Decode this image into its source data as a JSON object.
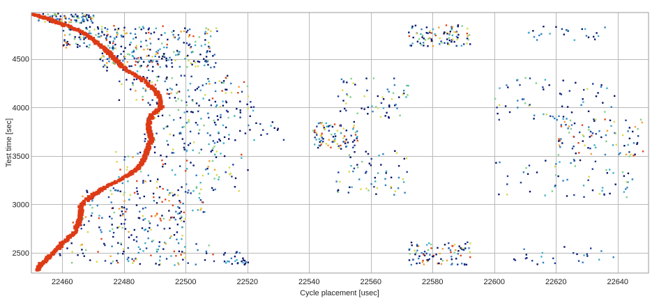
{
  "chart_data": {
    "type": "scatter",
    "xlabel": "Cycle placement [usec]",
    "ylabel": "Test time [sec]",
    "xlim": [
      22450,
      22650
    ],
    "ylim": [
      2290,
      4980
    ],
    "xticks": [
      22460,
      22480,
      22500,
      22520,
      22540,
      22560,
      22580,
      22600,
      22620,
      22640
    ],
    "yticks": [
      2500,
      3000,
      3500,
      4000,
      4500
    ],
    "grid": true,
    "legend": "none",
    "colormap": [
      "#08156b",
      "#1f3f9a",
      "#2f7fc0",
      "#3cb0c8",
      "#7fcf8a",
      "#d8d84a",
      "#f0a030",
      "#e0451a"
    ],
    "trace_color": "#dd3b16",
    "series": [
      {
        "shape": "s-curve trace",
        "points": [
          [
            22451,
            4960
          ],
          [
            22455,
            4920
          ],
          [
            22460,
            4860
          ],
          [
            22466,
            4790
          ],
          [
            22470,
            4700
          ],
          [
            22473,
            4620
          ],
          [
            22476,
            4540
          ],
          [
            22478,
            4470
          ],
          [
            22481,
            4380
          ],
          [
            22486,
            4290
          ],
          [
            22490,
            4180
          ],
          [
            22492,
            4080
          ],
          [
            22492,
            4000
          ],
          [
            22489,
            3920
          ],
          [
            22488,
            3840
          ],
          [
            22488,
            3760
          ],
          [
            22489,
            3680
          ],
          [
            22488,
            3600
          ],
          [
            22487,
            3520
          ],
          [
            22486,
            3440
          ],
          [
            22484,
            3360
          ],
          [
            22480,
            3280
          ],
          [
            22474,
            3180
          ],
          [
            22469,
            3080
          ],
          [
            22466,
            2980
          ],
          [
            22466,
            2880
          ],
          [
            22465,
            2780
          ],
          [
            22463,
            2680
          ],
          [
            22460,
            2600
          ],
          [
            22458,
            2520
          ],
          [
            22455,
            2440
          ],
          [
            22453,
            2380
          ],
          [
            22452,
            2320
          ]
        ]
      }
    ],
    "clusters": [
      {
        "x": [
          22452,
          22470
        ],
        "y": [
          4880,
          4980
        ],
        "density": "high"
      },
      {
        "x": [
          22460,
          22478
        ],
        "y": [
          4620,
          4860
        ],
        "density": "high"
      },
      {
        "x": [
          22476,
          22510
        ],
        "y": [
          4620,
          4850
        ],
        "density": "high"
      },
      {
        "x": [
          22472,
          22492
        ],
        "y": [
          4380,
          4620
        ],
        "density": "high"
      },
      {
        "x": [
          22492,
          22510
        ],
        "y": [
          4420,
          4600
        ],
        "density": "medium"
      },
      {
        "x": [
          22478,
          22520
        ],
        "y": [
          4080,
          4340
        ],
        "density": "high"
      },
      {
        "x": [
          22486,
          22522
        ],
        "y": [
          3900,
          4080
        ],
        "density": "medium"
      },
      {
        "x": [
          22486,
          22512
        ],
        "y": [
          3560,
          3900
        ],
        "density": "medium"
      },
      {
        "x": [
          22510,
          22532
        ],
        "y": [
          3620,
          3860
        ],
        "density": "low"
      },
      {
        "x": [
          22476,
          22520
        ],
        "y": [
          3140,
          3560
        ],
        "density": "high"
      },
      {
        "x": [
          22466,
          22506
        ],
        "y": [
          2900,
          3160
        ],
        "density": "high"
      },
      {
        "x": [
          22462,
          22500
        ],
        "y": [
          2620,
          2900
        ],
        "density": "high"
      },
      {
        "x": [
          22458,
          22510
        ],
        "y": [
          2380,
          2620
        ],
        "density": "high"
      },
      {
        "x": [
          22512,
          22520
        ],
        "y": [
          2380,
          2520
        ],
        "density": "low"
      },
      {
        "x": [
          22541,
          22556
        ],
        "y": [
          3580,
          3860
        ],
        "density": "high"
      },
      {
        "x": [
          22548,
          22572
        ],
        "y": [
          3900,
          4310
        ],
        "density": "medium"
      },
      {
        "x": [
          22548,
          22572
        ],
        "y": [
          3100,
          3560
        ],
        "density": "medium"
      },
      {
        "x": [
          22572,
          22592
        ],
        "y": [
          4640,
          4860
        ],
        "density": "high"
      },
      {
        "x": [
          22572,
          22592
        ],
        "y": [
          2380,
          2620
        ],
        "density": "high"
      },
      {
        "x": [
          22600,
          22640
        ],
        "y": [
          3880,
          4320
        ],
        "density": "medium"
      },
      {
        "x": [
          22600,
          22645
        ],
        "y": [
          3080,
          3500
        ],
        "density": "medium"
      },
      {
        "x": [
          22620,
          22648
        ],
        "y": [
          3500,
          3900
        ],
        "density": "high"
      },
      {
        "x": [
          22606,
          22640
        ],
        "y": [
          2380,
          2600
        ],
        "density": "low"
      },
      {
        "x": [
          22610,
          22636
        ],
        "y": [
          4700,
          4850
        ],
        "density": "low"
      }
    ]
  }
}
